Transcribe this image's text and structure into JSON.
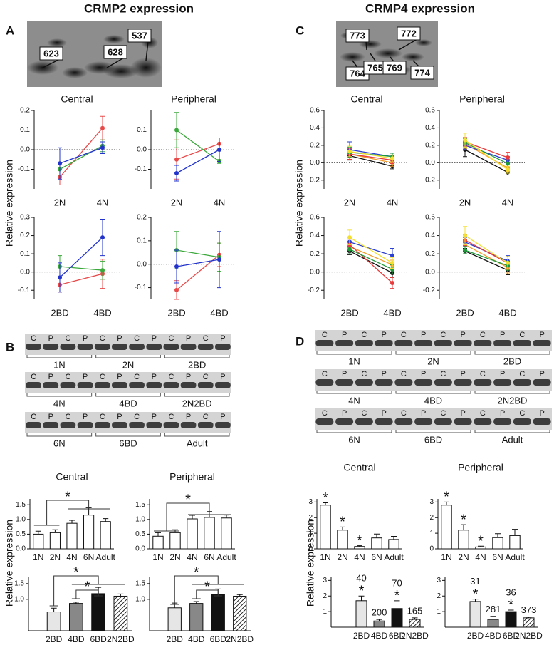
{
  "figure": {
    "titles": [
      "CRMP2 expression",
      "CRMP4 expression"
    ],
    "panels": [
      "A",
      "B",
      "C",
      "D"
    ],
    "ylabel": "Relative expression",
    "spots_a": [
      {
        "label": "623",
        "color": "#1f4fa8"
      },
      {
        "label": "628",
        "color": "#d0102a"
      },
      {
        "label": "537",
        "color": "#1a8a3a"
      }
    ],
    "spots_c": [
      {
        "label": "773",
        "color": "#111111"
      },
      {
        "label": "772",
        "color": "#f07a10"
      },
      {
        "label": "764",
        "color": "#1a8a3a"
      },
      {
        "label": "765",
        "color": "#1f4fa8"
      },
      {
        "label": "769",
        "color": "#d0102a"
      },
      {
        "label": "774",
        "color": "#e8b800"
      }
    ],
    "gels_b": [
      {
        "lanes": [
          "C",
          "P",
          "C",
          "P",
          "C",
          "P",
          "C",
          "P",
          "C",
          "P",
          "C",
          "P"
        ],
        "groups": [
          "1N",
          "2N",
          "2BD"
        ]
      },
      {
        "lanes": [
          "C",
          "P",
          "C",
          "P",
          "C",
          "P",
          "C",
          "P",
          "C",
          "P",
          "C",
          "P"
        ],
        "groups": [
          "4N",
          "4BD",
          "2N2BD"
        ]
      },
      {
        "lanes": [
          "C",
          "P",
          "C",
          "P",
          "C",
          "P",
          "C",
          "P",
          "C",
          "P",
          "C",
          "P"
        ],
        "groups": [
          "6N",
          "6BD",
          "Adult"
        ]
      }
    ],
    "gels_d": [
      {
        "lanes": [
          "C",
          "P",
          "C",
          "P",
          "C",
          "P",
          "C",
          "P",
          "C",
          "P",
          "C",
          "P"
        ],
        "groups": [
          "1N",
          "2N",
          "2BD"
        ]
      },
      {
        "lanes": [
          "C",
          "P",
          "C",
          "P",
          "C",
          "P",
          "C",
          "P",
          "C",
          "P",
          "C",
          "P"
        ],
        "groups": [
          "4N",
          "4BD",
          "2N2BD"
        ]
      },
      {
        "lanes": [
          "C",
          "P",
          "C",
          "P",
          "C",
          "P",
          "C",
          "P",
          "C",
          "P",
          "C",
          "P"
        ],
        "groups": [
          "6N",
          "6BD",
          "Adult"
        ]
      }
    ]
  },
  "chart_data": [
    {
      "type": "line",
      "title": "Central",
      "categories": [
        "2N",
        "4N"
      ],
      "ylim": [
        -0.2,
        0.2
      ],
      "yticks": [
        -0.1,
        {
          "value": 0,
          "label": "0.0"
        },
        0.1,
        0.2
      ],
      "series": [
        {
          "color": "#e84a4a",
          "values": [
            -0.14,
            0.11
          ],
          "errors": [
            0.04,
            0.06
          ]
        },
        {
          "color": "#3aa83a",
          "values": [
            -0.1,
            0.02
          ],
          "errors": [
            0.03,
            0.03
          ]
        },
        {
          "color": "#2233cc",
          "values": [
            -0.07,
            0.01
          ],
          "errors": [
            0.08,
            0.03
          ]
        }
      ]
    },
    {
      "type": "line",
      "title": "Peripheral",
      "categories": [
        "2N",
        "4N"
      ],
      "ylim": [
        -0.2,
        0.2
      ],
      "yticks": [
        -0.1,
        {
          "value": 0,
          "label": "0.0"
        },
        0.1
      ],
      "series": [
        {
          "color": "#e84a4a",
          "values": [
            -0.05,
            0.03
          ],
          "errors": [
            0.1,
            0.03
          ]
        },
        {
          "color": "#3aa83a",
          "values": [
            0.1,
            -0.06
          ],
          "errors": [
            0.09,
            0.01
          ]
        },
        {
          "color": "#2233cc",
          "values": [
            -0.12,
            0.0
          ],
          "errors": [
            0.04,
            0.06
          ]
        }
      ]
    },
    {
      "type": "line",
      "categories": [
        "2BD",
        "4BD"
      ],
      "ylim": [
        -0.15,
        0.3
      ],
      "yticks": [
        -0.1,
        {
          "value": 0,
          "label": "0.0"
        },
        0.1,
        0.2,
        0.3
      ],
      "series": [
        {
          "color": "#e84a4a",
          "values": [
            -0.07,
            -0.01
          ],
          "errors": [
            0.04,
            0.08
          ]
        },
        {
          "color": "#3aa83a",
          "values": [
            0.03,
            0.01
          ],
          "errors": [
            0.06,
            0.05
          ]
        },
        {
          "color": "#2233cc",
          "values": [
            -0.03,
            0.19
          ],
          "errors": [
            0.08,
            0.1
          ]
        }
      ]
    },
    {
      "type": "line",
      "categories": [
        "2BD",
        "4BD"
      ],
      "ylim": [
        -0.15,
        0.2
      ],
      "yticks": [
        -0.1,
        {
          "value": 0,
          "label": "0.0"
        },
        0.1,
        0.2
      ],
      "series": [
        {
          "color": "#e84a4a",
          "values": [
            -0.11,
            0.04
          ],
          "errors": [
            0.04,
            0.05
          ]
        },
        {
          "color": "#3aa83a",
          "values": [
            0.06,
            0.03
          ],
          "errors": [
            0.08,
            0.06
          ]
        },
        {
          "color": "#2233cc",
          "values": [
            -0.01,
            0.02
          ],
          "errors": [
            0.07,
            0.12
          ]
        }
      ]
    },
    {
      "type": "line",
      "title": "Central",
      "categories": [
        "2N",
        "4N"
      ],
      "ylim": [
        -0.3,
        0.6
      ],
      "yticks": [
        -0.2,
        {
          "value": 0,
          "label": "0.0"
        },
        0.2,
        0.4,
        0.6
      ],
      "series": [
        {
          "color": "#111111",
          "values": [
            0.08,
            -0.04
          ],
          "errors": [
            0.05,
            0.03
          ]
        },
        {
          "color": "#f39c2a",
          "values": [
            0.1,
            0.0
          ],
          "errors": [
            0.06,
            0.04
          ]
        },
        {
          "color": "#2b3fd1",
          "values": [
            0.15,
            0.07
          ],
          "errors": [
            0.09,
            0.04
          ]
        },
        {
          "color": "#e83a3a",
          "values": [
            0.1,
            0.03
          ],
          "errors": [
            0.06,
            0.04
          ]
        },
        {
          "color": "#1f9a3a",
          "values": [
            0.12,
            0.07
          ],
          "errors": [
            0.06,
            0.04
          ]
        },
        {
          "color": "#f4e030",
          "values": [
            0.13,
            0.05
          ],
          "errors": [
            0.06,
            0.04
          ]
        }
      ]
    },
    {
      "type": "line",
      "title": "Peripheral",
      "categories": [
        "2N",
        "4N"
      ],
      "ylim": [
        -0.3,
        0.6
      ],
      "yticks": [
        -0.2,
        {
          "value": 0,
          "label": "0.0"
        },
        0.2,
        0.4,
        0.6
      ],
      "series": [
        {
          "color": "#111111",
          "values": [
            0.15,
            -0.11
          ],
          "errors": [
            0.08,
            0.03
          ]
        },
        {
          "color": "#f39c2a",
          "values": [
            0.22,
            -0.06
          ],
          "errors": [
            0.06,
            0.04
          ]
        },
        {
          "color": "#2b3fd1",
          "values": [
            0.2,
            0.03
          ],
          "errors": [
            0.05,
            0.04
          ]
        },
        {
          "color": "#e83a3a",
          "values": [
            0.24,
            0.06
          ],
          "errors": [
            0.05,
            0.06
          ]
        },
        {
          "color": "#1f9a3a",
          "values": [
            0.23,
            -0.01
          ],
          "errors": [
            0.05,
            0.04
          ]
        },
        {
          "color": "#f4e030",
          "values": [
            0.26,
            -0.08
          ],
          "errors": [
            0.08,
            0.04
          ]
        }
      ]
    },
    {
      "type": "line",
      "categories": [
        "2BD",
        "4BD"
      ],
      "ylim": [
        -0.3,
        0.6
      ],
      "yticks": [
        -0.2,
        {
          "value": 0,
          "label": "0.0"
        },
        0.2,
        0.4,
        0.6
      ],
      "series": [
        {
          "color": "#111111",
          "values": [
            0.23,
            -0.01
          ],
          "errors": [
            0.04,
            0.05
          ]
        },
        {
          "color": "#f39c2a",
          "values": [
            0.28,
            0.08
          ],
          "errors": [
            0.06,
            0.05
          ]
        },
        {
          "color": "#2b3fd1",
          "values": [
            0.33,
            0.18
          ],
          "errors": [
            0.05,
            0.08
          ]
        },
        {
          "color": "#e83a3a",
          "values": [
            0.3,
            -0.12
          ],
          "errors": [
            0.06,
            0.06
          ]
        },
        {
          "color": "#1f9a3a",
          "values": [
            0.25,
            0.03
          ],
          "errors": [
            0.05,
            0.05
          ]
        },
        {
          "color": "#f4e030",
          "values": [
            0.38,
            0.1
          ],
          "errors": [
            0.08,
            0.06
          ]
        }
      ]
    },
    {
      "type": "line",
      "categories": [
        "2BD",
        "4BD"
      ],
      "ylim": [
        -0.3,
        0.6
      ],
      "yticks": [
        -0.2,
        {
          "value": 0,
          "label": "0.0"
        },
        0.2,
        0.4,
        0.6
      ],
      "series": [
        {
          "color": "#111111",
          "values": [
            0.23,
            0.02
          ],
          "errors": [
            0.03,
            0.05
          ]
        },
        {
          "color": "#f39c2a",
          "values": [
            0.3,
            0.05
          ],
          "errors": [
            0.06,
            0.06
          ]
        },
        {
          "color": "#2b3fd1",
          "values": [
            0.33,
            0.12
          ],
          "errors": [
            0.05,
            0.06
          ]
        },
        {
          "color": "#e83a3a",
          "values": [
            0.35,
            0.1
          ],
          "errors": [
            0.06,
            0.07
          ]
        },
        {
          "color": "#1f9a3a",
          "values": [
            0.24,
            0.07
          ],
          "errors": [
            0.04,
            0.05
          ]
        },
        {
          "color": "#f4e030",
          "values": [
            0.4,
            0.1
          ],
          "errors": [
            0.1,
            0.07
          ]
        }
      ]
    },
    {
      "type": "bar",
      "title": "Central",
      "categories": [
        "1N",
        "2N",
        "4N",
        "6N",
        "Adult"
      ],
      "values": [
        0.5,
        0.55,
        0.87,
        1.15,
        0.93
      ],
      "errors": [
        0.1,
        0.1,
        0.1,
        0.25,
        0.1
      ],
      "colors": [
        "#ffffff",
        "#ffffff",
        "#ffffff",
        "#ffffff",
        "#ffffff"
      ],
      "hatched": [
        false,
        false,
        false,
        false,
        false
      ],
      "ylim": [
        0,
        1.7
      ],
      "yticks": [
        {
          "value": 0,
          "label": "0.0"
        },
        0.5,
        {
          "value": 1,
          "label": "1.0"
        },
        1.5
      ],
      "annotations": [
        "*"
      ]
    },
    {
      "type": "bar",
      "title": "Peripheral",
      "categories": [
        "1N",
        "2N",
        "4N",
        "6N",
        "Adult"
      ],
      "values": [
        0.43,
        0.55,
        1.02,
        1.07,
        1.05
      ],
      "errors": [
        0.12,
        0.1,
        0.12,
        0.2,
        0.1
      ],
      "colors": [
        "#ffffff",
        "#ffffff",
        "#ffffff",
        "#ffffff",
        "#ffffff"
      ],
      "hatched": [
        false,
        false,
        false,
        false,
        false
      ],
      "ylim": [
        0,
        1.7
      ],
      "yticks": [
        {
          "value": 0,
          "label": "0.0"
        },
        0.5,
        {
          "value": 1,
          "label": "1.0"
        },
        1.5
      ],
      "annotations": [
        "*"
      ]
    },
    {
      "type": "bar",
      "categories": [
        "2BD",
        "4BD",
        "6BD",
        "2N2BD"
      ],
      "values": [
        0.6,
        0.87,
        1.18,
        1.1
      ],
      "errors": [
        0.12,
        0.04,
        0.2,
        0.07
      ],
      "colors": [
        "#e6e6e6",
        "#888888",
        "#111111",
        "#ffffff"
      ],
      "hatched": [
        false,
        false,
        false,
        true
      ],
      "ylim": [
        0,
        1.7
      ],
      "yticks": [
        {
          "value": 1,
          "label": "1.0"
        },
        1.5
      ],
      "annotations": [
        "*",
        "*"
      ]
    },
    {
      "type": "bar",
      "categories": [
        "2BD",
        "4BD",
        "6BD",
        "2N2BD"
      ],
      "values": [
        0.73,
        0.87,
        1.15,
        1.1
      ],
      "errors": [
        0.15,
        0.06,
        0.18,
        0.05
      ],
      "colors": [
        "#e6e6e6",
        "#888888",
        "#111111",
        "#ffffff"
      ],
      "hatched": [
        false,
        false,
        false,
        true
      ],
      "ylim": [
        0,
        1.7
      ],
      "yticks": [
        {
          "value": 1,
          "label": "1.0"
        },
        1.5
      ],
      "annotations": [
        "*",
        "*"
      ]
    },
    {
      "type": "bar",
      "title": "Central",
      "categories": [
        "1N",
        "2N",
        "4N",
        "6N",
        "Adult"
      ],
      "values": [
        2.8,
        1.2,
        0.15,
        0.7,
        0.6
      ],
      "errors": [
        0.15,
        0.2,
        0.05,
        0.25,
        0.2
      ],
      "colors": [
        "#ffffff",
        "#ffffff",
        "#ffffff",
        "#ffffff",
        "#ffffff"
      ],
      "hatched": [
        false,
        false,
        false,
        false,
        false
      ],
      "ylim": [
        0,
        3.2
      ],
      "yticks": [
        0,
        1,
        2,
        3
      ],
      "asterisks": [
        "*",
        "*",
        "*",
        null,
        null
      ]
    },
    {
      "type": "bar",
      "title": "Peripheral",
      "categories": [
        "1N",
        "2N",
        "4N",
        "6N",
        "Adult"
      ],
      "values": [
        2.8,
        1.2,
        0.12,
        0.72,
        0.85
      ],
      "errors": [
        0.2,
        0.35,
        0.05,
        0.25,
        0.4
      ],
      "colors": [
        "#ffffff",
        "#ffffff",
        "#ffffff",
        "#ffffff",
        "#ffffff"
      ],
      "hatched": [
        false,
        false,
        false,
        false,
        false
      ],
      "ylim": [
        0,
        3.2
      ],
      "yticks": [
        0,
        1,
        2,
        3
      ],
      "asterisks": [
        "*",
        "*",
        "*",
        null,
        null
      ]
    },
    {
      "type": "bar",
      "categories": [
        "2BD",
        "4BD",
        "6BD",
        "2N2BD"
      ],
      "values": [
        1.7,
        0.4,
        1.2,
        0.5
      ],
      "errors": [
        0.3,
        0.1,
        0.5,
        0.1
      ],
      "colors": [
        "#e6e6e6",
        "#888888",
        "#111111",
        "#ffffff"
      ],
      "hatched": [
        false,
        false,
        false,
        true
      ],
      "ylim": [
        0,
        3.2
      ],
      "yticks": [
        1,
        2,
        3
      ],
      "asterisks": [
        "*",
        null,
        "*",
        null
      ],
      "bar_labels": [
        "40",
        "200",
        "70",
        "165"
      ]
    },
    {
      "type": "bar",
      "categories": [
        "2BD",
        "4BD",
        "6BD",
        "2N2BD"
      ],
      "values": [
        1.65,
        0.5,
        1.0,
        0.6
      ],
      "errors": [
        0.15,
        0.2,
        0.1,
        0.05
      ],
      "colors": [
        "#e6e6e6",
        "#888888",
        "#111111",
        "#ffffff"
      ],
      "hatched": [
        false,
        false,
        false,
        true
      ],
      "ylim": [
        0,
        3.2
      ],
      "yticks": [
        1,
        2,
        3
      ],
      "asterisks": [
        "*",
        null,
        "*",
        null
      ],
      "bar_labels": [
        "31",
        "281",
        "36",
        "373"
      ]
    }
  ]
}
